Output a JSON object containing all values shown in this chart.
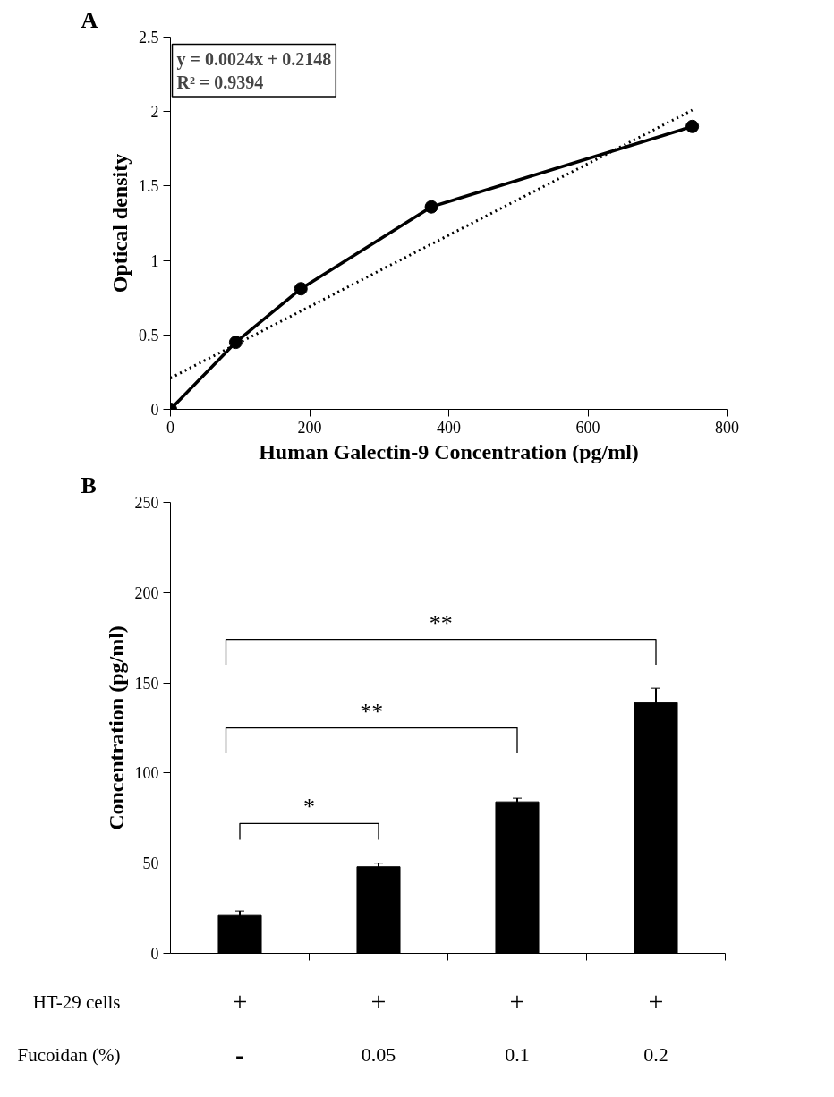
{
  "chart_data": [
    {
      "type": "scatter",
      "xlabel": "Human Galectin-9 Concentration (pg/ml)",
      "ylabel": "Optical density",
      "annotations": [
        "A",
        "y = 0.0024x + 0.2148",
        "R² = 0.9394"
      ],
      "series": [
        {
          "type": "line",
          "color": "#000000",
          "marker": "circle",
          "line_style": "solid",
          "x": [
            0,
            93.75,
            187.5,
            375,
            750
          ],
          "values": [
            0,
            0.45,
            0.81,
            1.36,
            1.9
          ]
        },
        {
          "type": "line",
          "color": "#000000",
          "marker": "none",
          "line_style": "dotted",
          "x": [
            0,
            750
          ],
          "values": [
            0.21,
            2.01
          ]
        }
      ],
      "xlim": [
        0,
        800
      ],
      "xticks": [
        0,
        200,
        400,
        600,
        800
      ],
      "ylim": [
        0,
        2.5
      ],
      "yticks": [
        0,
        0.5,
        1,
        1.5,
        2,
        2.5
      ],
      "grid": false
    },
    {
      "type": "bar",
      "ylabel": "Concentration (pg/ml)",
      "categories": [
        "-",
        "0.05",
        "0.1",
        "0.2"
      ],
      "values": [
        21,
        48,
        84,
        139
      ],
      "errors": [
        2.5,
        2,
        2,
        8
      ],
      "color": "#000000",
      "annotations": [
        "B",
        "HT-29 cells",
        "Fucoidan (%)",
        "+",
        "+",
        "+",
        "+",
        "*",
        "**",
        "**"
      ],
      "ylim": [
        0,
        250
      ],
      "yticks": [
        0,
        50,
        100,
        150,
        200,
        250
      ],
      "grid": false
    }
  ]
}
